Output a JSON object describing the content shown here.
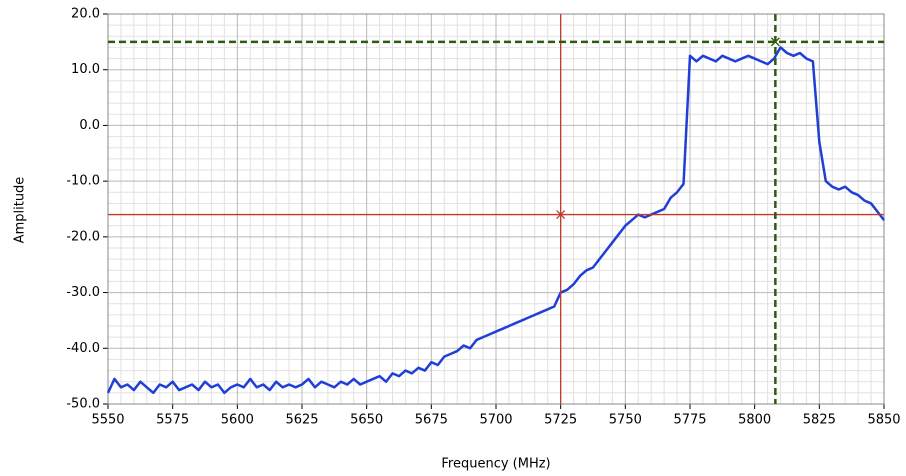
{
  "chart_data": {
    "type": "line",
    "xlabel": "Frequency (MHz)",
    "ylabel": "Amplitude",
    "color": "#1f3fd6",
    "grid": true,
    "minor_divisions": 5,
    "xlim": [
      5550,
      5850
    ],
    "xticks": [
      5550,
      5575,
      5600,
      5625,
      5650,
      5675,
      5700,
      5725,
      5750,
      5775,
      5800,
      5825,
      5850
    ],
    "ylim": [
      -50,
      20
    ],
    "yticks": [
      {
        "value": -50,
        "label": "-50.0"
      },
      {
        "value": -40,
        "label": "-40.0"
      },
      {
        "value": -30,
        "label": "-30.0"
      },
      {
        "value": -20,
        "label": "-20.0"
      },
      {
        "value": -10,
        "label": "-10.0"
      },
      {
        "value": 0,
        "label": "0.0"
      },
      {
        "value": 10,
        "label": "10.0"
      },
      {
        "value": 20,
        "label": "20.0"
      }
    ],
    "cursors": [
      {
        "x": 5725,
        "y": -16,
        "color": "#c0392b",
        "style": "solid"
      },
      {
        "x": 5808,
        "y": 15,
        "color": "#2e5c0e",
        "style": "dashed"
      }
    ],
    "x": [
      5550,
      5552.5,
      5555,
      5557.5,
      5560,
      5562.5,
      5565,
      5567.5,
      5570,
      5572.5,
      5575,
      5577.5,
      5580,
      5582.5,
      5585,
      5587.5,
      5590,
      5592.5,
      5595,
      5597.5,
      5600,
      5602.5,
      5605,
      5607.5,
      5610,
      5612.5,
      5615,
      5617.5,
      5620,
      5622.5,
      5625,
      5627.5,
      5630,
      5632.5,
      5635,
      5637.5,
      5640,
      5642.5,
      5645,
      5647.5,
      5650,
      5652.5,
      5655,
      5657.5,
      5660,
      5662.5,
      5665,
      5667.5,
      5670,
      5672.5,
      5675,
      5677.5,
      5680,
      5682.5,
      5685,
      5687.5,
      5690,
      5692.5,
      5695,
      5697.5,
      5700,
      5702.5,
      5705,
      5707.5,
      5710,
      5712.5,
      5715,
      5717.5,
      5720,
      5722.5,
      5725,
      5727.5,
      5730,
      5732.5,
      5735,
      5737.5,
      5740,
      5742.5,
      5745,
      5747.5,
      5750,
      5752.5,
      5755,
      5757.5,
      5760,
      5762.5,
      5765,
      5767.5,
      5770,
      5772.5,
      5775,
      5777.5,
      5780,
      5782.5,
      5785,
      5787.5,
      5790,
      5792.5,
      5795,
      5797.5,
      5800,
      5802.5,
      5805,
      5807.5,
      5810,
      5812.5,
      5815,
      5817.5,
      5820,
      5822.5,
      5825,
      5827.5,
      5830,
      5832.5,
      5835,
      5837.5,
      5840,
      5842.5,
      5845,
      5847.5,
      5850
    ],
    "values": [
      -48,
      -45.5,
      -47,
      -46.5,
      -47.5,
      -46,
      -47,
      -48,
      -46.5,
      -47,
      -46,
      -47.5,
      -47,
      -46.5,
      -47.5,
      -46,
      -47,
      -46.5,
      -48,
      -47,
      -46.5,
      -47,
      -45.5,
      -47,
      -46.5,
      -47.5,
      -46,
      -47,
      -46.5,
      -47,
      -46.5,
      -45.5,
      -47,
      -46,
      -46.5,
      -47,
      -46,
      -46.5,
      -45.5,
      -46.5,
      -46,
      -45.5,
      -45,
      -46,
      -44.5,
      -45,
      -44,
      -44.5,
      -43.5,
      -44,
      -42.5,
      -43,
      -41.5,
      -41,
      -40.5,
      -39.5,
      -40,
      -38.5,
      -38,
      -37.5,
      -37,
      -36.5,
      -36,
      -35.5,
      -35,
      -34.5,
      -34,
      -33.5,
      -33,
      -32.5,
      -30,
      -29.5,
      -28.5,
      -27,
      -26,
      -25.5,
      -24,
      -22.5,
      -21,
      -19.5,
      -18,
      -17,
      -16,
      -16.5,
      -16,
      -15.5,
      -15,
      -13,
      -12,
      -10.5,
      12.5,
      11.5,
      12.5,
      12,
      11.5,
      12.5,
      12,
      11.5,
      12,
      12.5,
      12,
      11.5,
      11,
      12,
      14,
      13,
      12.5,
      13,
      12,
      11.5,
      -3,
      -10,
      -11,
      -11.5,
      -11,
      -12,
      -12.5,
      -13.5,
      -14,
      -15.5,
      -17
    ]
  }
}
